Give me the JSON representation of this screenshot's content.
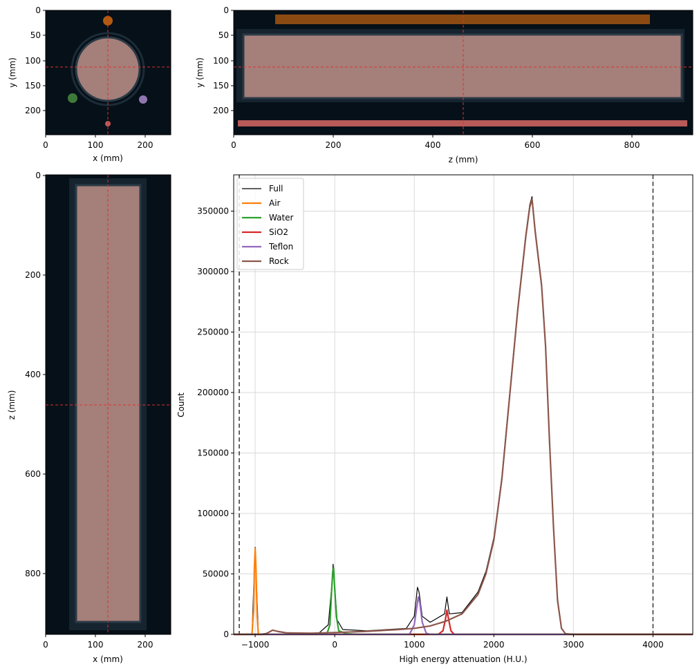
{
  "colors": {
    "background": "#061018",
    "column_fill": "#a57f7a",
    "column_border": "#2a3a46",
    "crosshair": "#e03030",
    "air": "#ff7f0e",
    "water": "#2ca02c",
    "sio2": "#d62728",
    "teflon": "#9467bd",
    "rock": "#8c564b",
    "full": "#000000",
    "orange_marker": "#b15a10",
    "green_marker": "#3d7a3a",
    "purple_marker": "#8f76b0",
    "red_marker": "#c0585a",
    "grid": "#d9d9d9"
  },
  "panels": {
    "xy": {
      "xlabel": "x (mm)",
      "ylabel": "y (mm)",
      "xticks": [
        "0",
        "100",
        "200"
      ],
      "yticks": [
        "0",
        "50",
        "100",
        "150",
        "200"
      ],
      "crosshair": {
        "x": 125,
        "y": 115
      }
    },
    "zy": {
      "xlabel": "z (mm)",
      "ylabel": "y (mm)",
      "xticks": [
        "0",
        "200",
        "400",
        "600",
        "800"
      ],
      "yticks": [
        "0",
        "50",
        "100",
        "150",
        "200"
      ],
      "crosshair": {
        "z": 460,
        "y": 115
      }
    },
    "xz": {
      "xlabel": "x (mm)",
      "ylabel": "z (mm)",
      "xticks": [
        "0",
        "100",
        "200"
      ],
      "yticks": [
        "0",
        "200",
        "400",
        "600",
        "800"
      ],
      "crosshair": {
        "x": 125,
        "z": 460
      }
    }
  },
  "chart_data": {
    "type": "line",
    "title": "",
    "xlabel": "High energy attenuation (H.U.)",
    "ylabel": "Count",
    "xlim": [
      -1270,
      4500
    ],
    "ylim": [
      0,
      380000
    ],
    "grid": true,
    "legend_position": "top-left",
    "xticks": [
      -1000,
      0,
      1000,
      2000,
      3000,
      4000
    ],
    "xtick_labels": [
      "−1000",
      "0",
      "1000",
      "2000",
      "3000",
      "4000"
    ],
    "yticks": [
      0,
      50000,
      100000,
      150000,
      200000,
      250000,
      300000,
      350000
    ],
    "ytick_labels": [
      "0",
      "50000",
      "100000",
      "150000",
      "200000",
      "250000",
      "300000",
      "350000"
    ],
    "vlines": [
      -1200,
      4000
    ],
    "series": [
      {
        "name": "Full",
        "key": "full",
        "points": [
          [
            -1270,
            0
          ],
          [
            -1040,
            0
          ],
          [
            -1010,
            55000
          ],
          [
            -1000,
            72000
          ],
          [
            -990,
            55000
          ],
          [
            -960,
            0
          ],
          [
            -850,
            1000
          ],
          [
            -780,
            3500
          ],
          [
            -700,
            2000
          ],
          [
            -600,
            1000
          ],
          [
            -200,
            1000
          ],
          [
            -80,
            8000
          ],
          [
            -40,
            38000
          ],
          [
            -20,
            58000
          ],
          [
            0,
            40000
          ],
          [
            30,
            12000
          ],
          [
            100,
            4000
          ],
          [
            400,
            3000
          ],
          [
            900,
            5000
          ],
          [
            1000,
            15000
          ],
          [
            1040,
            39000
          ],
          [
            1060,
            35000
          ],
          [
            1100,
            15000
          ],
          [
            1200,
            10000
          ],
          [
            1380,
            17000
          ],
          [
            1410,
            31000
          ],
          [
            1440,
            17000
          ],
          [
            1600,
            18000
          ],
          [
            1800,
            35000
          ],
          [
            1900,
            52000
          ],
          [
            2000,
            80000
          ],
          [
            2100,
            130000
          ],
          [
            2200,
            200000
          ],
          [
            2300,
            270000
          ],
          [
            2400,
            330000
          ],
          [
            2450,
            355000
          ],
          [
            2480,
            362000
          ],
          [
            2520,
            335000
          ],
          [
            2600,
            290000
          ],
          [
            2650,
            240000
          ],
          [
            2700,
            160000
          ],
          [
            2750,
            90000
          ],
          [
            2800,
            30000
          ],
          [
            2850,
            5000
          ],
          [
            2900,
            500
          ],
          [
            3000,
            0
          ],
          [
            4500,
            0
          ]
        ]
      },
      {
        "name": "Air",
        "key": "air",
        "points": [
          [
            -1270,
            0
          ],
          [
            -1040,
            0
          ],
          [
            -1020,
            20000
          ],
          [
            -1010,
            55000
          ],
          [
            -1000,
            71000
          ],
          [
            -990,
            55000
          ],
          [
            -975,
            15000
          ],
          [
            -960,
            0
          ],
          [
            4500,
            0
          ]
        ]
      },
      {
        "name": "Water",
        "key": "water",
        "points": [
          [
            -1270,
            0
          ],
          [
            -100,
            0
          ],
          [
            -60,
            8000
          ],
          [
            -40,
            35000
          ],
          [
            -25,
            52000
          ],
          [
            -15,
            55000
          ],
          [
            0,
            38000
          ],
          [
            20,
            15000
          ],
          [
            50,
            3000
          ],
          [
            150,
            500
          ],
          [
            300,
            0
          ],
          [
            4500,
            0
          ]
        ]
      },
      {
        "name": "SiO2",
        "key": "sio2",
        "points": [
          [
            -1270,
            0
          ],
          [
            1300,
            0
          ],
          [
            1360,
            3000
          ],
          [
            1390,
            12000
          ],
          [
            1410,
            20000
          ],
          [
            1430,
            13000
          ],
          [
            1460,
            3000
          ],
          [
            1500,
            0
          ],
          [
            4500,
            0
          ]
        ]
      },
      {
        "name": "Teflon",
        "key": "teflon",
        "points": [
          [
            -1270,
            0
          ],
          [
            940,
            0
          ],
          [
            1000,
            8000
          ],
          [
            1030,
            22000
          ],
          [
            1050,
            31000
          ],
          [
            1070,
            26000
          ],
          [
            1100,
            10000
          ],
          [
            1150,
            1000
          ],
          [
            1200,
            0
          ],
          [
            4500,
            0
          ]
        ]
      },
      {
        "name": "Rock",
        "key": "rock",
        "points": [
          [
            -1270,
            0
          ],
          [
            -900,
            0
          ],
          [
            -850,
            1000
          ],
          [
            -780,
            3500
          ],
          [
            -720,
            2500
          ],
          [
            -600,
            1200
          ],
          [
            -300,
            1000
          ],
          [
            0,
            1500
          ],
          [
            400,
            2500
          ],
          [
            800,
            4000
          ],
          [
            1000,
            5000
          ],
          [
            1200,
            7000
          ],
          [
            1400,
            11000
          ],
          [
            1600,
            17000
          ],
          [
            1800,
            33000
          ],
          [
            1900,
            50000
          ],
          [
            2000,
            78000
          ],
          [
            2100,
            128000
          ],
          [
            2200,
            198000
          ],
          [
            2300,
            268000
          ],
          [
            2400,
            328000
          ],
          [
            2450,
            353000
          ],
          [
            2480,
            360000
          ],
          [
            2520,
            333000
          ],
          [
            2600,
            288000
          ],
          [
            2650,
            238000
          ],
          [
            2700,
            158000
          ],
          [
            2750,
            88000
          ],
          [
            2800,
            28000
          ],
          [
            2850,
            5000
          ],
          [
            2900,
            500
          ],
          [
            3000,
            0
          ],
          [
            4500,
            0
          ]
        ]
      }
    ]
  }
}
